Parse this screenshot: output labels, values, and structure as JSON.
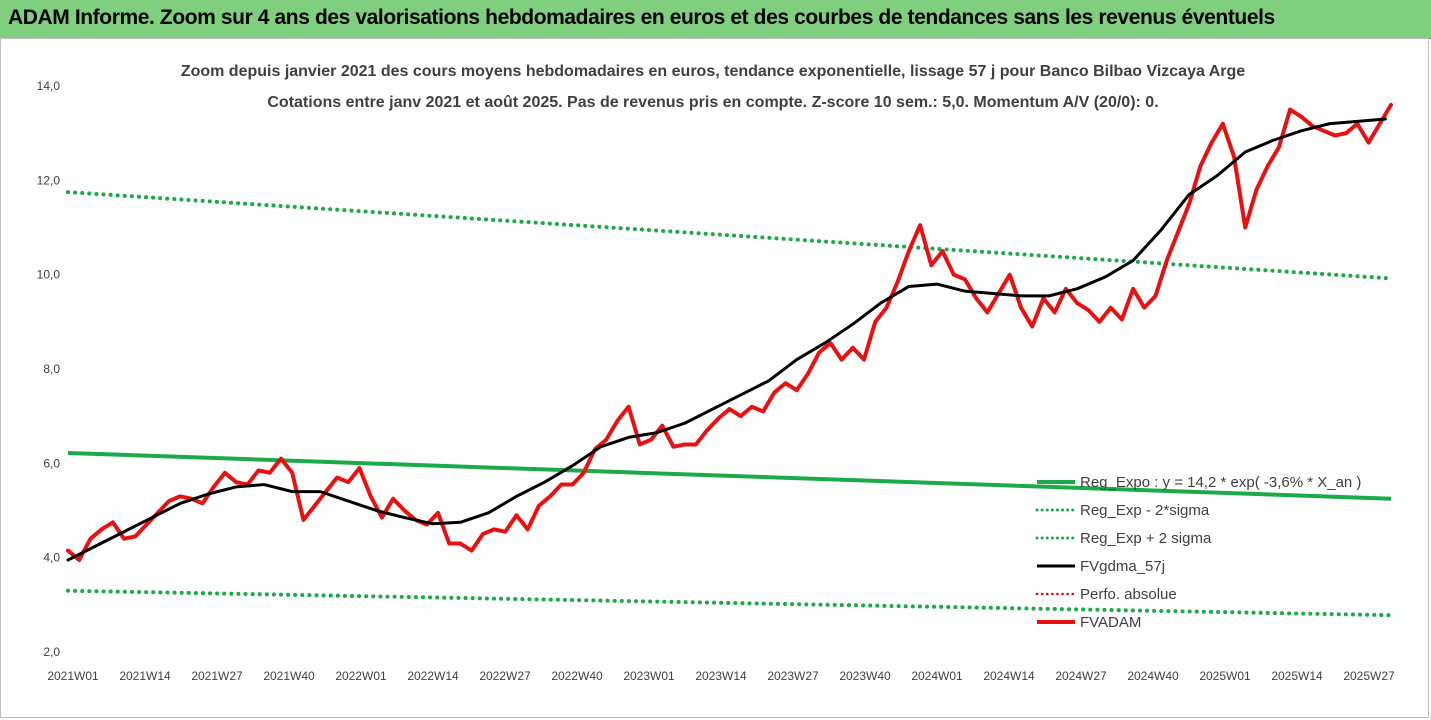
{
  "header": {
    "title": "ADAM Informe. Zoom sur 4 ans des valorisations hebdomadaires en euros et des courbes de tendances sans les revenus éventuels"
  },
  "chart_data": {
    "type": "line",
    "title_line1": "Zoom depuis janvier 2021 des cours moyens hebdomadaires en euros, tendance exponentielle, lissage 57 j pour Banco Bilbao Vizcaya Arge",
    "title_line2": "Cotations entre janv 2021 et août 2025.  Pas de revenus pris en compte. Z-score 10 sem.: 5,0. Momentum A/V (20/0): 0.",
    "ylim": [
      2,
      14
    ],
    "y_ticks": [
      "2,0",
      "4,0",
      "6,0",
      "8,0",
      "10,0",
      "12,0",
      "14,0"
    ],
    "x_tick_labels": [
      "2021W01",
      "2021W14",
      "2021W27",
      "2021W40",
      "2022W01",
      "2022W14",
      "2022W27",
      "2022W40",
      "2023W01",
      "2023W14",
      "2023W27",
      "2023W40",
      "2024W01",
      "2024W14",
      "2024W27",
      "2024W40",
      "2025W01",
      "2025W14",
      "2025W27"
    ],
    "grid": false,
    "legend_position": "bottom-right",
    "colors": {
      "reg_expo": "#1aaa4a",
      "dotted_green": "#1aaa4a",
      "sma": "#000000",
      "perf_abs": "#e00000",
      "price": "#e81010"
    },
    "series": [
      {
        "name": "Reg_Expo : y = 14,2 * exp( -3,6% *  X_an )",
        "style": "solid",
        "start": 6.22,
        "end": 5.25
      },
      {
        "name": "Reg_Exp - 2*sigma",
        "style": "dotted",
        "start": 3.3,
        "end": 2.78
      },
      {
        "name": "Reg_Exp + 2 sigma",
        "style": "dotted",
        "start": 11.75,
        "end": 9.92
      },
      {
        "name": "FVgdma_57j",
        "style": "solid",
        "x": [
          0,
          5,
          10,
          15,
          20,
          25,
          30,
          35,
          40,
          45,
          50,
          55,
          60,
          65,
          70,
          75,
          80,
          85,
          90,
          95,
          100,
          105,
          110,
          115,
          120,
          125,
          130,
          135,
          140,
          145,
          150,
          155,
          160,
          165,
          170,
          175,
          180,
          185,
          190,
          195,
          200,
          205,
          210,
          215,
          220,
          225,
          230,
          235
        ],
        "values": [
          3.95,
          4.25,
          4.55,
          4.85,
          5.15,
          5.35,
          5.5,
          5.55,
          5.4,
          5.4,
          5.2,
          5.0,
          4.85,
          4.72,
          4.75,
          4.95,
          5.3,
          5.6,
          5.95,
          6.35,
          6.55,
          6.65,
          6.85,
          7.15,
          7.45,
          7.75,
          8.2,
          8.55,
          8.95,
          9.4,
          9.75,
          9.8,
          9.65,
          9.6,
          9.55,
          9.55,
          9.7,
          9.95,
          10.3,
          10.95,
          11.7,
          12.1,
          12.6,
          12.85,
          13.05,
          13.2,
          13.25,
          13.3
        ]
      },
      {
        "name": "Perfo. absolue",
        "style": "dotted",
        "values": []
      },
      {
        "name": "FVADAM",
        "style": "solid",
        "x": [
          0,
          2,
          4,
          6,
          8,
          10,
          12,
          14,
          16,
          18,
          20,
          22,
          24,
          26,
          28,
          30,
          32,
          34,
          36,
          38,
          40,
          42,
          44,
          46,
          48,
          50,
          52,
          54,
          56,
          58,
          60,
          62,
          64,
          66,
          68,
          70,
          72,
          74,
          76,
          78,
          80,
          82,
          84,
          86,
          88,
          90,
          92,
          94,
          96,
          98,
          100,
          102,
          104,
          106,
          108,
          110,
          112,
          114,
          116,
          118,
          120,
          122,
          124,
          126,
          128,
          130,
          132,
          134,
          136,
          138,
          140,
          142,
          144,
          146,
          148,
          150,
          152,
          154,
          156,
          158,
          160,
          162,
          164,
          166,
          168,
          170,
          172,
          174,
          176,
          178,
          180,
          182,
          184,
          186,
          188,
          190,
          192,
          194,
          196,
          198,
          200,
          202,
          204,
          206,
          208,
          210,
          212,
          214,
          216,
          218,
          220,
          222,
          224,
          226,
          228,
          230,
          232,
          234,
          236
        ],
        "values": [
          4.15,
          3.95,
          4.4,
          4.6,
          4.75,
          4.4,
          4.45,
          4.7,
          4.95,
          5.2,
          5.3,
          5.25,
          5.15,
          5.5,
          5.8,
          5.6,
          5.55,
          5.85,
          5.8,
          6.1,
          5.8,
          4.8,
          5.1,
          5.4,
          5.7,
          5.6,
          5.9,
          5.3,
          4.85,
          5.25,
          5.0,
          4.8,
          4.7,
          4.95,
          4.3,
          4.3,
          4.15,
          4.5,
          4.6,
          4.55,
          4.9,
          4.6,
          5.1,
          5.3,
          5.55,
          5.55,
          5.8,
          6.3,
          6.5,
          6.9,
          7.2,
          6.4,
          6.5,
          6.8,
          6.35,
          6.4,
          6.4,
          6.7,
          6.95,
          7.15,
          7.0,
          7.2,
          7.1,
          7.5,
          7.7,
          7.55,
          7.9,
          8.35,
          8.55,
          8.2,
          8.45,
          8.2,
          9.0,
          9.3,
          9.85,
          10.5,
          11.05,
          10.2,
          10.5,
          10.0,
          9.9,
          9.5,
          9.2,
          9.6,
          10.0,
          9.3,
          8.9,
          9.5,
          9.2,
          9.7,
          9.4,
          9.25,
          9.0,
          9.3,
          9.05,
          9.7,
          9.3,
          9.55,
          10.3,
          10.9,
          11.5,
          12.3,
          12.8,
          13.2,
          12.5,
          11.0,
          11.8,
          12.3,
          12.7,
          13.5,
          13.35,
          13.15,
          13.05,
          12.95,
          13.0,
          13.2,
          12.8,
          13.2,
          13.6
        ]
      }
    ]
  }
}
